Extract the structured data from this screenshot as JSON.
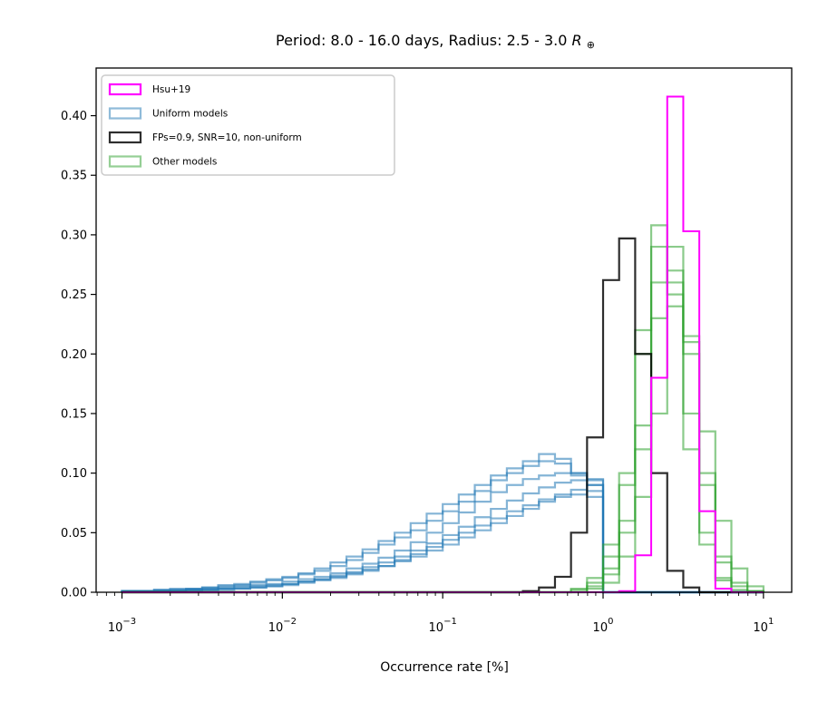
{
  "chart_data": {
    "type": "histogram-step",
    "title": "Period: 8.0 - 16.0 days, Radius: 2.5 - 3.0",
    "title_symbol": "R",
    "title_symbol_sub": "⊕",
    "xlabel": "Occurrence rate [%]",
    "ylabel": "",
    "xscale": "log",
    "xlim": [
      0.00069,
      15
    ],
    "ylim": [
      0,
      0.44
    ],
    "yticks": [
      0.0,
      0.05,
      0.1,
      0.15,
      0.2,
      0.25,
      0.3,
      0.35,
      0.4
    ],
    "ytick_labels": [
      "0.00",
      "0.05",
      "0.10",
      "0.15",
      "0.20",
      "0.25",
      "0.30",
      "0.35",
      "0.40"
    ],
    "xticks": [
      {
        "base": "10",
        "exp": "−3",
        "value": 0.001
      },
      {
        "base": "10",
        "exp": "−2",
        "value": 0.01
      },
      {
        "base": "10",
        "exp": "−1",
        "value": 0.1
      },
      {
        "base": "10",
        "exp": "0",
        "value": 1
      },
      {
        "base": "10",
        "exp": "1",
        "value": 10
      }
    ],
    "legend": {
      "position": "upper-left",
      "entries": [
        {
          "label": "Hsu+19",
          "color": "#ff00ff"
        },
        {
          "label": "Uniform models",
          "color": "#1f77b4"
        },
        {
          "label": "FPs=0.9, SNR=10, non-uniform",
          "color": "#000000"
        },
        {
          "label": "Other models",
          "color": "#2ca02c"
        }
      ]
    },
    "bin_edges_log10": [
      -3.0,
      -2.9,
      -2.8,
      -2.7,
      -2.6,
      -2.5,
      -2.4,
      -2.3,
      -2.2,
      -2.1,
      -2.0,
      -1.9,
      -1.8,
      -1.7,
      -1.6,
      -1.5,
      -1.4,
      -1.3,
      -1.2,
      -1.1,
      -1.0,
      -0.9,
      -0.8,
      -0.7,
      -0.6,
      -0.5,
      -0.4,
      -0.3,
      -0.2,
      -0.1,
      0.0,
      0.1,
      0.2,
      0.3,
      0.4,
      0.5,
      0.6,
      0.7,
      0.8,
      0.9,
      1.0
    ],
    "series": [
      {
        "name": "Uniform models",
        "group": "uniform",
        "color": "#1f77b4",
        "values": [
          0.001,
          0.001,
          0.001,
          0.001,
          0.002,
          0.002,
          0.003,
          0.004,
          0.005,
          0.006,
          0.007,
          0.009,
          0.011,
          0.013,
          0.016,
          0.019,
          0.022,
          0.026,
          0.03,
          0.035,
          0.04,
          0.046,
          0.052,
          0.058,
          0.064,
          0.07,
          0.076,
          0.08,
          0.082,
          0.085,
          0,
          0,
          0,
          0,
          0,
          0,
          0,
          0,
          0,
          0
        ]
      },
      {
        "name": "Uniform models",
        "group": "uniform",
        "color": "#1f77b4",
        "values": [
          0.001,
          0.001,
          0.001,
          0.002,
          0.002,
          0.003,
          0.004,
          0.005,
          0.006,
          0.007,
          0.009,
          0.011,
          0.013,
          0.016,
          0.02,
          0.024,
          0.029,
          0.035,
          0.042,
          0.05,
          0.058,
          0.067,
          0.076,
          0.084,
          0.09,
          0.095,
          0.098,
          0.1,
          0.098,
          0.095,
          0,
          0,
          0,
          0,
          0,
          0,
          0,
          0,
          0,
          0
        ]
      },
      {
        "name": "Uniform models",
        "group": "uniform",
        "color": "#1f77b4",
        "values": [
          0.001,
          0.001,
          0.002,
          0.002,
          0.003,
          0.004,
          0.005,
          0.006,
          0.008,
          0.01,
          0.012,
          0.015,
          0.018,
          0.022,
          0.027,
          0.033,
          0.04,
          0.046,
          0.052,
          0.06,
          0.068,
          0.076,
          0.085,
          0.094,
          0.1,
          0.106,
          0.11,
          0.108,
          0.1,
          0.09,
          0,
          0,
          0,
          0,
          0,
          0,
          0,
          0,
          0,
          0
        ]
      },
      {
        "name": "Uniform models",
        "group": "uniform",
        "color": "#1f77b4",
        "values": [
          0.001,
          0.001,
          0.001,
          0.001,
          0.001,
          0.002,
          0.002,
          0.003,
          0.004,
          0.005,
          0.006,
          0.008,
          0.01,
          0.012,
          0.015,
          0.018,
          0.022,
          0.027,
          0.032,
          0.038,
          0.044,
          0.05,
          0.056,
          0.062,
          0.068,
          0.073,
          0.078,
          0.082,
          0.086,
          0.09,
          0,
          0,
          0,
          0,
          0,
          0,
          0,
          0,
          0,
          0
        ]
      },
      {
        "name": "Uniform models",
        "group": "uniform",
        "color": "#1f77b4",
        "values": [
          0.001,
          0.001,
          0.002,
          0.003,
          0.003,
          0.004,
          0.006,
          0.007,
          0.009,
          0.011,
          0.013,
          0.016,
          0.02,
          0.025,
          0.03,
          0.036,
          0.043,
          0.05,
          0.058,
          0.066,
          0.074,
          0.082,
          0.09,
          0.098,
          0.104,
          0.11,
          0.116,
          0.112,
          0.1,
          0.08,
          0,
          0,
          0,
          0,
          0,
          0,
          0,
          0,
          0,
          0
        ]
      },
      {
        "name": "Uniform models",
        "group": "uniform",
        "color": "#1f77b4",
        "values": [
          0.001,
          0.001,
          0.001,
          0.001,
          0.002,
          0.002,
          0.003,
          0.003,
          0.004,
          0.005,
          0.007,
          0.009,
          0.011,
          0.014,
          0.017,
          0.021,
          0.025,
          0.03,
          0.035,
          0.041,
          0.048,
          0.055,
          0.063,
          0.07,
          0.077,
          0.083,
          0.088,
          0.092,
          0.094,
          0.094,
          0,
          0,
          0,
          0,
          0,
          0,
          0,
          0,
          0,
          0
        ]
      },
      {
        "name": "Other models",
        "group": "other",
        "color": "#2ca02c",
        "values": [
          0,
          0,
          0,
          0,
          0,
          0,
          0,
          0,
          0,
          0,
          0,
          0,
          0,
          0,
          0,
          0,
          0,
          0,
          0,
          0,
          0,
          0,
          0,
          0,
          0,
          0,
          0,
          0,
          0.003,
          0.012,
          0.04,
          0.1,
          0.22,
          0.308,
          0.25,
          0.12,
          0.04,
          0.01,
          0,
          0
        ]
      },
      {
        "name": "Other models",
        "group": "other",
        "color": "#2ca02c",
        "values": [
          0,
          0,
          0,
          0,
          0,
          0,
          0,
          0,
          0,
          0,
          0,
          0,
          0,
          0,
          0,
          0,
          0,
          0,
          0,
          0,
          0,
          0,
          0,
          0,
          0,
          0,
          0,
          0,
          0,
          0.005,
          0.02,
          0.06,
          0.14,
          0.26,
          0.29,
          0.21,
          0.1,
          0.03,
          0.008,
          0.001
        ]
      },
      {
        "name": "Other models",
        "group": "other",
        "color": "#2ca02c",
        "values": [
          0,
          0,
          0,
          0,
          0,
          0,
          0,
          0,
          0,
          0,
          0,
          0,
          0,
          0,
          0,
          0,
          0,
          0,
          0,
          0,
          0,
          0,
          0,
          0,
          0,
          0,
          0,
          0,
          0,
          0,
          0.008,
          0.03,
          0.08,
          0.15,
          0.24,
          0.215,
          0.135,
          0.06,
          0.02,
          0.005
        ]
      },
      {
        "name": "Other models",
        "group": "other",
        "color": "#2ca02c",
        "values": [
          0,
          0,
          0,
          0,
          0,
          0,
          0,
          0,
          0,
          0,
          0,
          0,
          0,
          0,
          0,
          0,
          0,
          0,
          0,
          0,
          0,
          0,
          0,
          0,
          0,
          0,
          0,
          0,
          0.002,
          0.008,
          0.03,
          0.09,
          0.2,
          0.29,
          0.26,
          0.15,
          0.05,
          0.012,
          0.002,
          0
        ]
      },
      {
        "name": "Other models",
        "group": "other",
        "color": "#2ca02c",
        "values": [
          0,
          0,
          0,
          0,
          0,
          0,
          0,
          0,
          0,
          0,
          0,
          0,
          0,
          0,
          0,
          0,
          0,
          0,
          0,
          0,
          0,
          0,
          0,
          0,
          0,
          0,
          0,
          0,
          0,
          0.003,
          0.015,
          0.05,
          0.12,
          0.23,
          0.27,
          0.2,
          0.09,
          0.025,
          0.005,
          0.001
        ]
      },
      {
        "name": "FPs=0.9, SNR=10, non-uniform",
        "group": "fps",
        "color": "#000000",
        "values": [
          0,
          0,
          0,
          0,
          0,
          0,
          0,
          0,
          0,
          0,
          0,
          0,
          0,
          0,
          0,
          0,
          0,
          0,
          0,
          0,
          0,
          0,
          0,
          0,
          0,
          0.001,
          0.004,
          0.013,
          0.05,
          0.13,
          0.262,
          0.297,
          0.2,
          0.1,
          0.018,
          0.004,
          0,
          0,
          0,
          0
        ]
      },
      {
        "name": "Hsu+19",
        "group": "hsu",
        "color": "#ff00ff",
        "values": [
          0,
          0,
          0,
          0,
          0,
          0,
          0,
          0,
          0,
          0,
          0,
          0,
          0,
          0,
          0,
          0,
          0,
          0,
          0,
          0,
          0,
          0,
          0,
          0,
          0,
          0,
          0,
          0,
          0,
          0,
          0,
          0.001,
          0.031,
          0.18,
          0.416,
          0.303,
          0.068,
          0.003,
          0,
          0
        ]
      }
    ]
  }
}
